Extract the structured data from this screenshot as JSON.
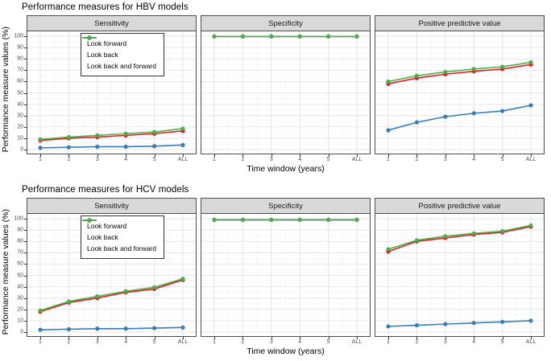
{
  "styles": {
    "red": "#e41a1c",
    "blue": "#377eb8",
    "green": "#4daf4a",
    "strip_bg": "#d9d9d9",
    "panel_border": "#4d4d4d",
    "grid_major": "#e6e6e6",
    "grid_minor": "#f4f4f4",
    "tick_label_color": "#4d4d4d"
  },
  "legend": {
    "items": [
      {
        "label": "Look forward",
        "color": "#e41a1c"
      },
      {
        "label": "Look back",
        "color": "#377eb8"
      },
      {
        "label": "Look back and forward",
        "color": "#4daf4a"
      }
    ]
  },
  "chart_data": [
    {
      "group": "HBV",
      "title": "Performance measures for HBV models",
      "type": "line",
      "x": [
        "1",
        "2",
        "3",
        "4",
        "5",
        "ALL"
      ],
      "xlabel": "Time window (years)",
      "ylabel": "Performance measure values (%)",
      "ylim": [
        0,
        100
      ],
      "yticks": [
        0,
        10,
        20,
        30,
        40,
        50,
        60,
        70,
        80,
        90,
        100
      ],
      "grid": true,
      "legend_position": "inside top-left of Sensitivity panel",
      "panels": [
        {
          "title": "Sensitivity",
          "has_legend": true,
          "series": [
            {
              "name": "Look forward",
              "color": "#e41a1c",
              "values": [
                8,
                10,
                11,
                12.5,
                14,
                16.5
              ]
            },
            {
              "name": "Look back",
              "color": "#377eb8",
              "values": [
                1.5,
                2,
                2.5,
                2.5,
                3,
                4
              ]
            },
            {
              "name": "Look back and forward",
              "color": "#4daf4a",
              "values": [
                9,
                11,
                12.5,
                14,
                15.5,
                18.5
              ]
            }
          ]
        },
        {
          "title": "Specificity",
          "has_legend": false,
          "series": [
            {
              "name": "Look forward",
              "color": "#e41a1c",
              "values": [
                99.8,
                99.8,
                99.8,
                99.8,
                99.8,
                99.8
              ]
            },
            {
              "name": "Look back",
              "color": "#377eb8",
              "values": [
                99.8,
                99.8,
                99.8,
                99.8,
                99.8,
                99.8
              ]
            },
            {
              "name": "Look back and forward",
              "color": "#4daf4a",
              "values": [
                99.8,
                99.8,
                99.8,
                99.8,
                99.8,
                99.8
              ]
            }
          ]
        },
        {
          "title": "Positive predictive value",
          "has_legend": false,
          "series": [
            {
              "name": "Look forward",
              "color": "#e41a1c",
              "values": [
                58,
                63,
                66.5,
                69,
                71,
                75
              ]
            },
            {
              "name": "Look back",
              "color": "#377eb8",
              "values": [
                17,
                24,
                29,
                32,
                34,
                39
              ]
            },
            {
              "name": "Look back and forward",
              "color": "#4daf4a",
              "values": [
                60,
                65,
                68.5,
                71,
                73,
                77
              ]
            }
          ]
        }
      ]
    },
    {
      "group": "HCV",
      "title": "Performance measures for HCV models",
      "type": "line",
      "x": [
        "1",
        "2",
        "3",
        "4",
        "5",
        "ALL"
      ],
      "xlabel": "Time window (years)",
      "ylabel": "Performance measure values (%)",
      "ylim": [
        0,
        100
      ],
      "yticks": [
        0,
        10,
        20,
        30,
        40,
        50,
        60,
        70,
        80,
        90,
        100
      ],
      "grid": true,
      "legend_position": "inside top-left of Sensitivity panel",
      "panels": [
        {
          "title": "Sensitivity",
          "has_legend": true,
          "series": [
            {
              "name": "Look forward",
              "color": "#e41a1c",
              "values": [
                18,
                26,
                30,
                35,
                38,
                46
              ]
            },
            {
              "name": "Look back",
              "color": "#377eb8",
              "values": [
                2,
                2.5,
                3,
                3,
                3.5,
                4
              ]
            },
            {
              "name": "Look back and forward",
              "color": "#4daf4a",
              "values": [
                19,
                27,
                31.5,
                36,
                39.5,
                47
              ]
            }
          ]
        },
        {
          "title": "Specificity",
          "has_legend": false,
          "series": [
            {
              "name": "Look forward",
              "color": "#e41a1c",
              "values": [
                99,
                99,
                99,
                99,
                99,
                99
              ]
            },
            {
              "name": "Look back",
              "color": "#377eb8",
              "values": [
                99,
                99,
                99,
                99,
                99,
                99
              ]
            },
            {
              "name": "Look back and forward",
              "color": "#4daf4a",
              "values": [
                99,
                99,
                99,
                99,
                99,
                99
              ]
            }
          ]
        },
        {
          "title": "Positive predictive value",
          "has_legend": false,
          "series": [
            {
              "name": "Look forward",
              "color": "#e41a1c",
              "values": [
                71,
                80,
                83,
                86,
                88,
                93
              ]
            },
            {
              "name": "Look back",
              "color": "#377eb8",
              "values": [
                5,
                6,
                7,
                8,
                9,
                10
              ]
            },
            {
              "name": "Look back and forward",
              "color": "#4daf4a",
              "values": [
                73,
                81,
                84.5,
                87,
                89,
                94
              ]
            }
          ]
        }
      ]
    }
  ]
}
